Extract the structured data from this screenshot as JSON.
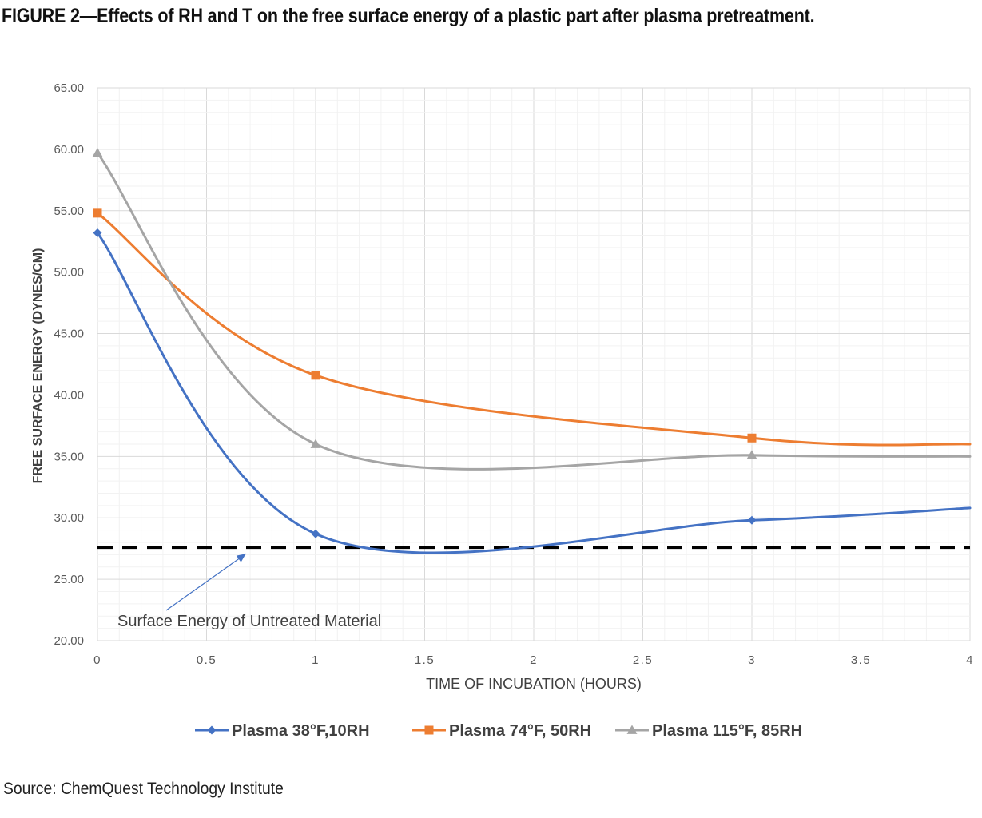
{
  "figure": {
    "title": "FIGURE 2—Effects of RH and T on the free surface energy of a plastic part after plasma pretreatment.",
    "source": "Source: ChemQuest Technology Institute"
  },
  "chart_data": {
    "type": "line",
    "title": "",
    "xlabel": "TIME OF INCUBATION (HOURS)",
    "ylabel": "FREE SURFACE ENERGY (DYNES/CM)",
    "xlim": [
      0,
      4
    ],
    "ylim": [
      20,
      65
    ],
    "x_ticks": [
      "0",
      "0.5",
      "1",
      "1.5",
      "2",
      "2.5",
      "3",
      "3.5",
      "4"
    ],
    "y_ticks": [
      "20.00",
      "25.00",
      "30.00",
      "35.00",
      "40.00",
      "45.00",
      "50.00",
      "55.00",
      "60.00",
      "65.00"
    ],
    "grid": true,
    "smooth": true,
    "legend_position": "bottom",
    "series": [
      {
        "name": "Plasma 38°F,10RH",
        "color": "#4472c4",
        "marker": "diamond",
        "x": [
          0,
          1,
          3,
          4
        ],
        "y": [
          53.2,
          28.7,
          29.8,
          30.8
        ]
      },
      {
        "name": "Plasma 74°F, 50RH",
        "color": "#ed7d31",
        "marker": "square",
        "x": [
          0,
          1,
          3,
          4
        ],
        "y": [
          54.8,
          41.6,
          36.5,
          36.0
        ]
      },
      {
        "name": "Plasma 115°F, 85RH",
        "color": "#a5a5a5",
        "marker": "triangle",
        "x": [
          0,
          1,
          3,
          4
        ],
        "y": [
          59.7,
          36.0,
          35.1,
          35.0
        ]
      }
    ],
    "reference_line": {
      "y": 27.6,
      "style": "dashed",
      "color": "#000000"
    },
    "annotation": {
      "text": "Surface Energy of Untreated Material",
      "x": 0.68,
      "y": 27.2
    }
  }
}
